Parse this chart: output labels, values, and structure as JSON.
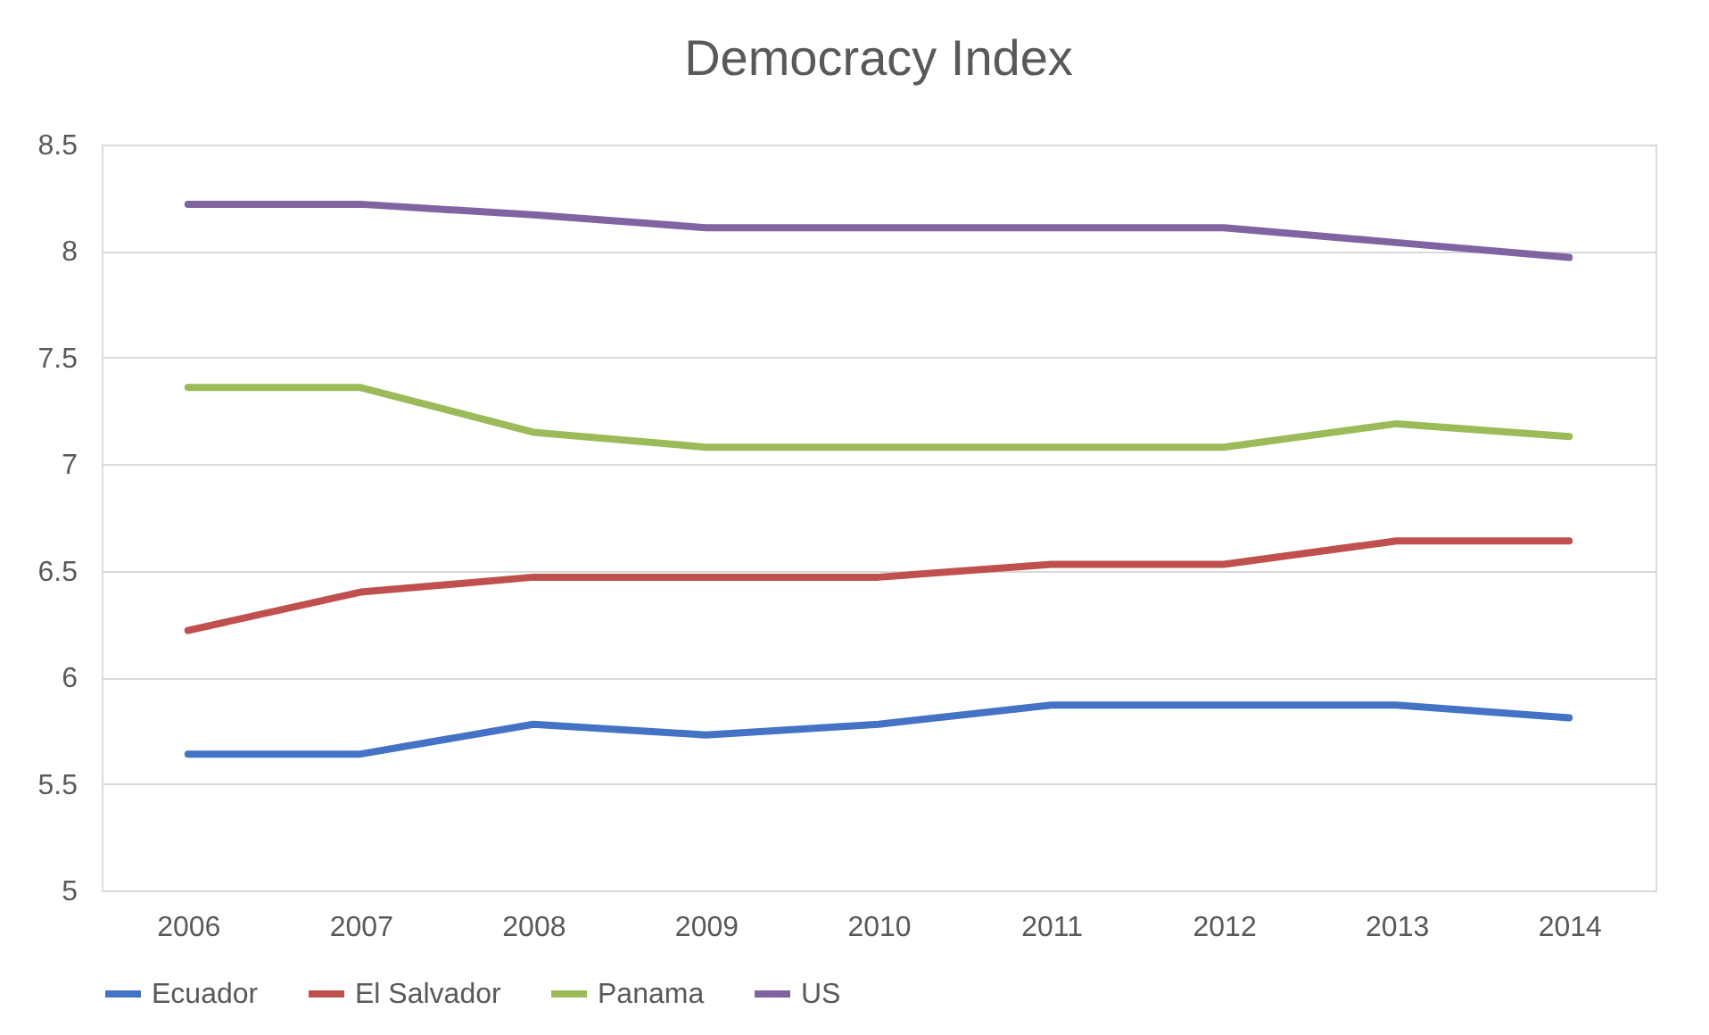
{
  "chart_data": {
    "type": "line",
    "title": "Democracy Index",
    "categories": [
      "2006",
      "2007",
      "2008",
      "2009",
      "2010",
      "2011",
      "2012",
      "2013",
      "2014"
    ],
    "series": [
      {
        "name": "Ecuador",
        "color": "#4472c4",
        "values": [
          5.64,
          5.64,
          5.78,
          5.73,
          5.78,
          5.87,
          5.87,
          5.87,
          5.81
        ]
      },
      {
        "name": "El Salvador",
        "color": "#c0504d",
        "values": [
          6.22,
          6.4,
          6.47,
          6.47,
          6.47,
          6.53,
          6.53,
          6.64,
          6.64
        ]
      },
      {
        "name": "Panama",
        "color": "#9bbb59",
        "values": [
          7.36,
          7.36,
          7.15,
          7.08,
          7.08,
          7.08,
          7.08,
          7.19,
          7.13
        ]
      },
      {
        "name": "US",
        "color": "#8064a2",
        "values": [
          8.22,
          8.22,
          8.17,
          8.11,
          8.11,
          8.11,
          8.11,
          8.04,
          7.97
        ]
      }
    ],
    "ylim": [
      5,
      8.5
    ],
    "yticks": [
      5,
      5.5,
      6,
      6.5,
      7,
      7.5,
      8,
      8.5
    ],
    "grid": "y",
    "legend": "bottom",
    "marker": "none",
    "line_style": "solid"
  }
}
